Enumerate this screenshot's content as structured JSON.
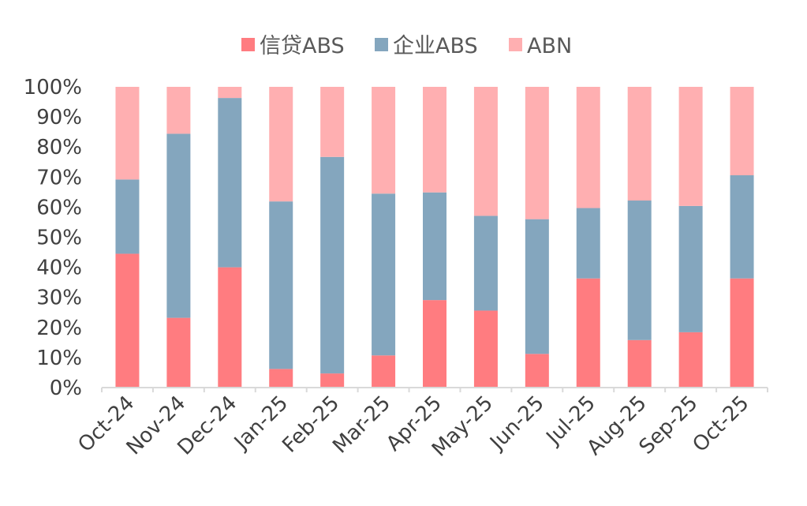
{
  "chart_data": {
    "type": "bar",
    "stacked": true,
    "percent": true,
    "categories": [
      "Oct-24",
      "Nov-24",
      "Dec-24",
      "Jan-25",
      "Feb-25",
      "Mar-25",
      "Apr-25",
      "May-25",
      "Jun-25",
      "Jul-25",
      "Aug-25",
      "Sep-25",
      "Oct-25"
    ],
    "series": [
      {
        "name": "信贷ABS",
        "color": "#FF7C80",
        "values": [
          44.5,
          23.2,
          40.0,
          6.2,
          4.7,
          10.7,
          29.1,
          25.6,
          11.2,
          36.3,
          15.8,
          18.4,
          36.3
        ]
      },
      {
        "name": "企业ABS",
        "color": "#84A6BE",
        "values": [
          24.7,
          61.2,
          56.3,
          55.7,
          72.0,
          53.8,
          35.8,
          31.5,
          44.8,
          23.4,
          46.4,
          42.0,
          34.3
        ]
      },
      {
        "name": "ABN",
        "color": "#FFAFB1",
        "values": [
          30.8,
          15.6,
          3.7,
          38.1,
          23.3,
          35.5,
          35.1,
          42.9,
          44.0,
          40.3,
          37.8,
          39.6,
          29.4
        ]
      }
    ],
    "ylim": [
      0,
      100
    ],
    "yticks": [
      "0%",
      "10%",
      "20%",
      "30%",
      "40%",
      "50%",
      "60%",
      "70%",
      "80%",
      "90%",
      "100%"
    ],
    "grid": false,
    "legend_position": "top-center",
    "title": "",
    "xlabel": "",
    "ylabel": ""
  }
}
